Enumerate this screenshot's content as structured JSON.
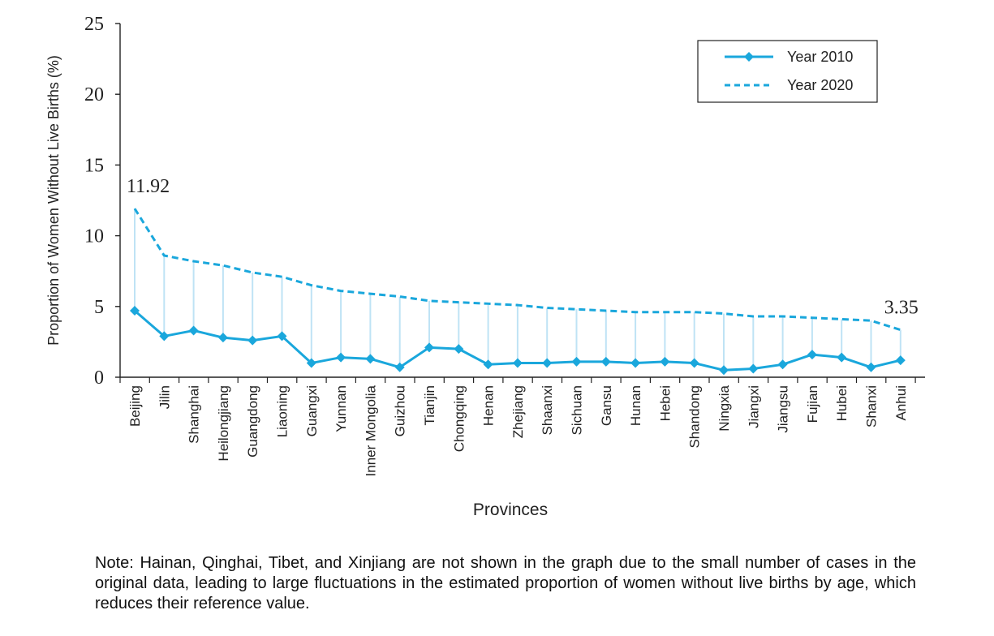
{
  "chart_data": {
    "type": "line",
    "xlabel": "Provinces",
    "ylabel": "Proportion of Women Without Live Births (%)",
    "ylim": [
      0,
      25
    ],
    "yticks": [
      0,
      5,
      10,
      15,
      20,
      25
    ],
    "categories": [
      "Beijing",
      "Jilin",
      "Shanghai",
      "Heilongjiang",
      "Guangdong",
      "Liaoning",
      "Guangxi",
      "Yunnan",
      "Inner Mongolia",
      "Guizhou",
      "Tianjin",
      "Chongqing",
      "Henan",
      "Zhejiang",
      "Shaanxi",
      "Sichuan",
      "Gansu",
      "Hunan",
      "Hebei",
      "Shandong",
      "Ningxia",
      "Jiangxi",
      "Jiangsu",
      "Fujian",
      "Hubei",
      "Shanxi",
      "Anhui"
    ],
    "series": [
      {
        "name": "Year 2010",
        "style": "solid-diamond",
        "color": "#1aa7dc",
        "values": [
          4.7,
          2.9,
          3.3,
          2.8,
          2.6,
          2.9,
          1.0,
          1.4,
          1.3,
          0.7,
          2.1,
          2.0,
          0.9,
          1.0,
          1.0,
          1.1,
          1.1,
          1.0,
          1.1,
          1.0,
          0.5,
          0.6,
          0.9,
          1.6,
          1.4,
          0.7,
          1.2
        ]
      },
      {
        "name": "Year 2020",
        "style": "dashed",
        "color": "#1aa7dc",
        "values": [
          11.92,
          8.6,
          8.2,
          7.9,
          7.4,
          7.1,
          6.5,
          6.1,
          5.9,
          5.7,
          5.4,
          5.3,
          5.2,
          5.1,
          4.9,
          4.8,
          4.7,
          4.6,
          4.6,
          4.6,
          4.5,
          4.3,
          4.3,
          4.2,
          4.1,
          4.0,
          3.35
        ]
      }
    ],
    "annotations": [
      {
        "text": "11.92",
        "category": "Beijing",
        "series": "Year 2020"
      },
      {
        "text": "3.35",
        "category": "Anhui",
        "series": "Year 2020"
      }
    ],
    "connector_color": "#bfe3f5",
    "legend_position": "top-right",
    "grid": false
  },
  "note": "Note: Hainan, Qinghai, Tibet, and Xinjiang are not shown in the graph due to the small number of cases in the original data, leading to large fluctuations in the estimated proportion of women without live births by age, which reduces their reference value."
}
